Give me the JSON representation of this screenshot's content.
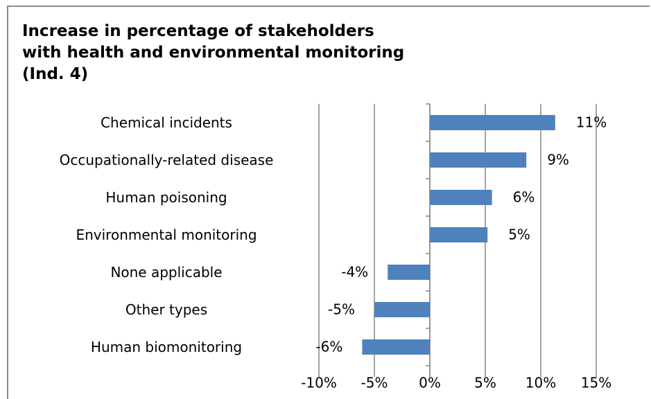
{
  "chart_data": {
    "type": "bar",
    "orientation": "horizontal",
    "title": "Increase in percentage of stakeholders with health and environmental monitoring (Ind. 4)",
    "categories": [
      "Chemical incidents",
      "Occupationally-related disease",
      "Human poisoning",
      "Environmental monitoring",
      "None applicable",
      "Other types",
      "Human biomonitoring"
    ],
    "values": [
      11.3,
      8.7,
      5.6,
      5.2,
      -3.8,
      -5,
      -6.1
    ],
    "value_labels": [
      "11%",
      "9%",
      "6%",
      "5%",
      "-4%",
      "-5%",
      "-6%"
    ],
    "color": "#4f81bd",
    "xlim": [
      -10,
      15
    ],
    "xticks": [
      {
        "value": -10,
        "label": "-10%"
      },
      {
        "value": -5,
        "label": "-5%"
      },
      {
        "value": 0,
        "label": "0%"
      },
      {
        "value": 5,
        "label": "5%"
      },
      {
        "value": 10,
        "label": "10%"
      },
      {
        "value": 15,
        "label": "15%"
      }
    ],
    "grid": true
  }
}
